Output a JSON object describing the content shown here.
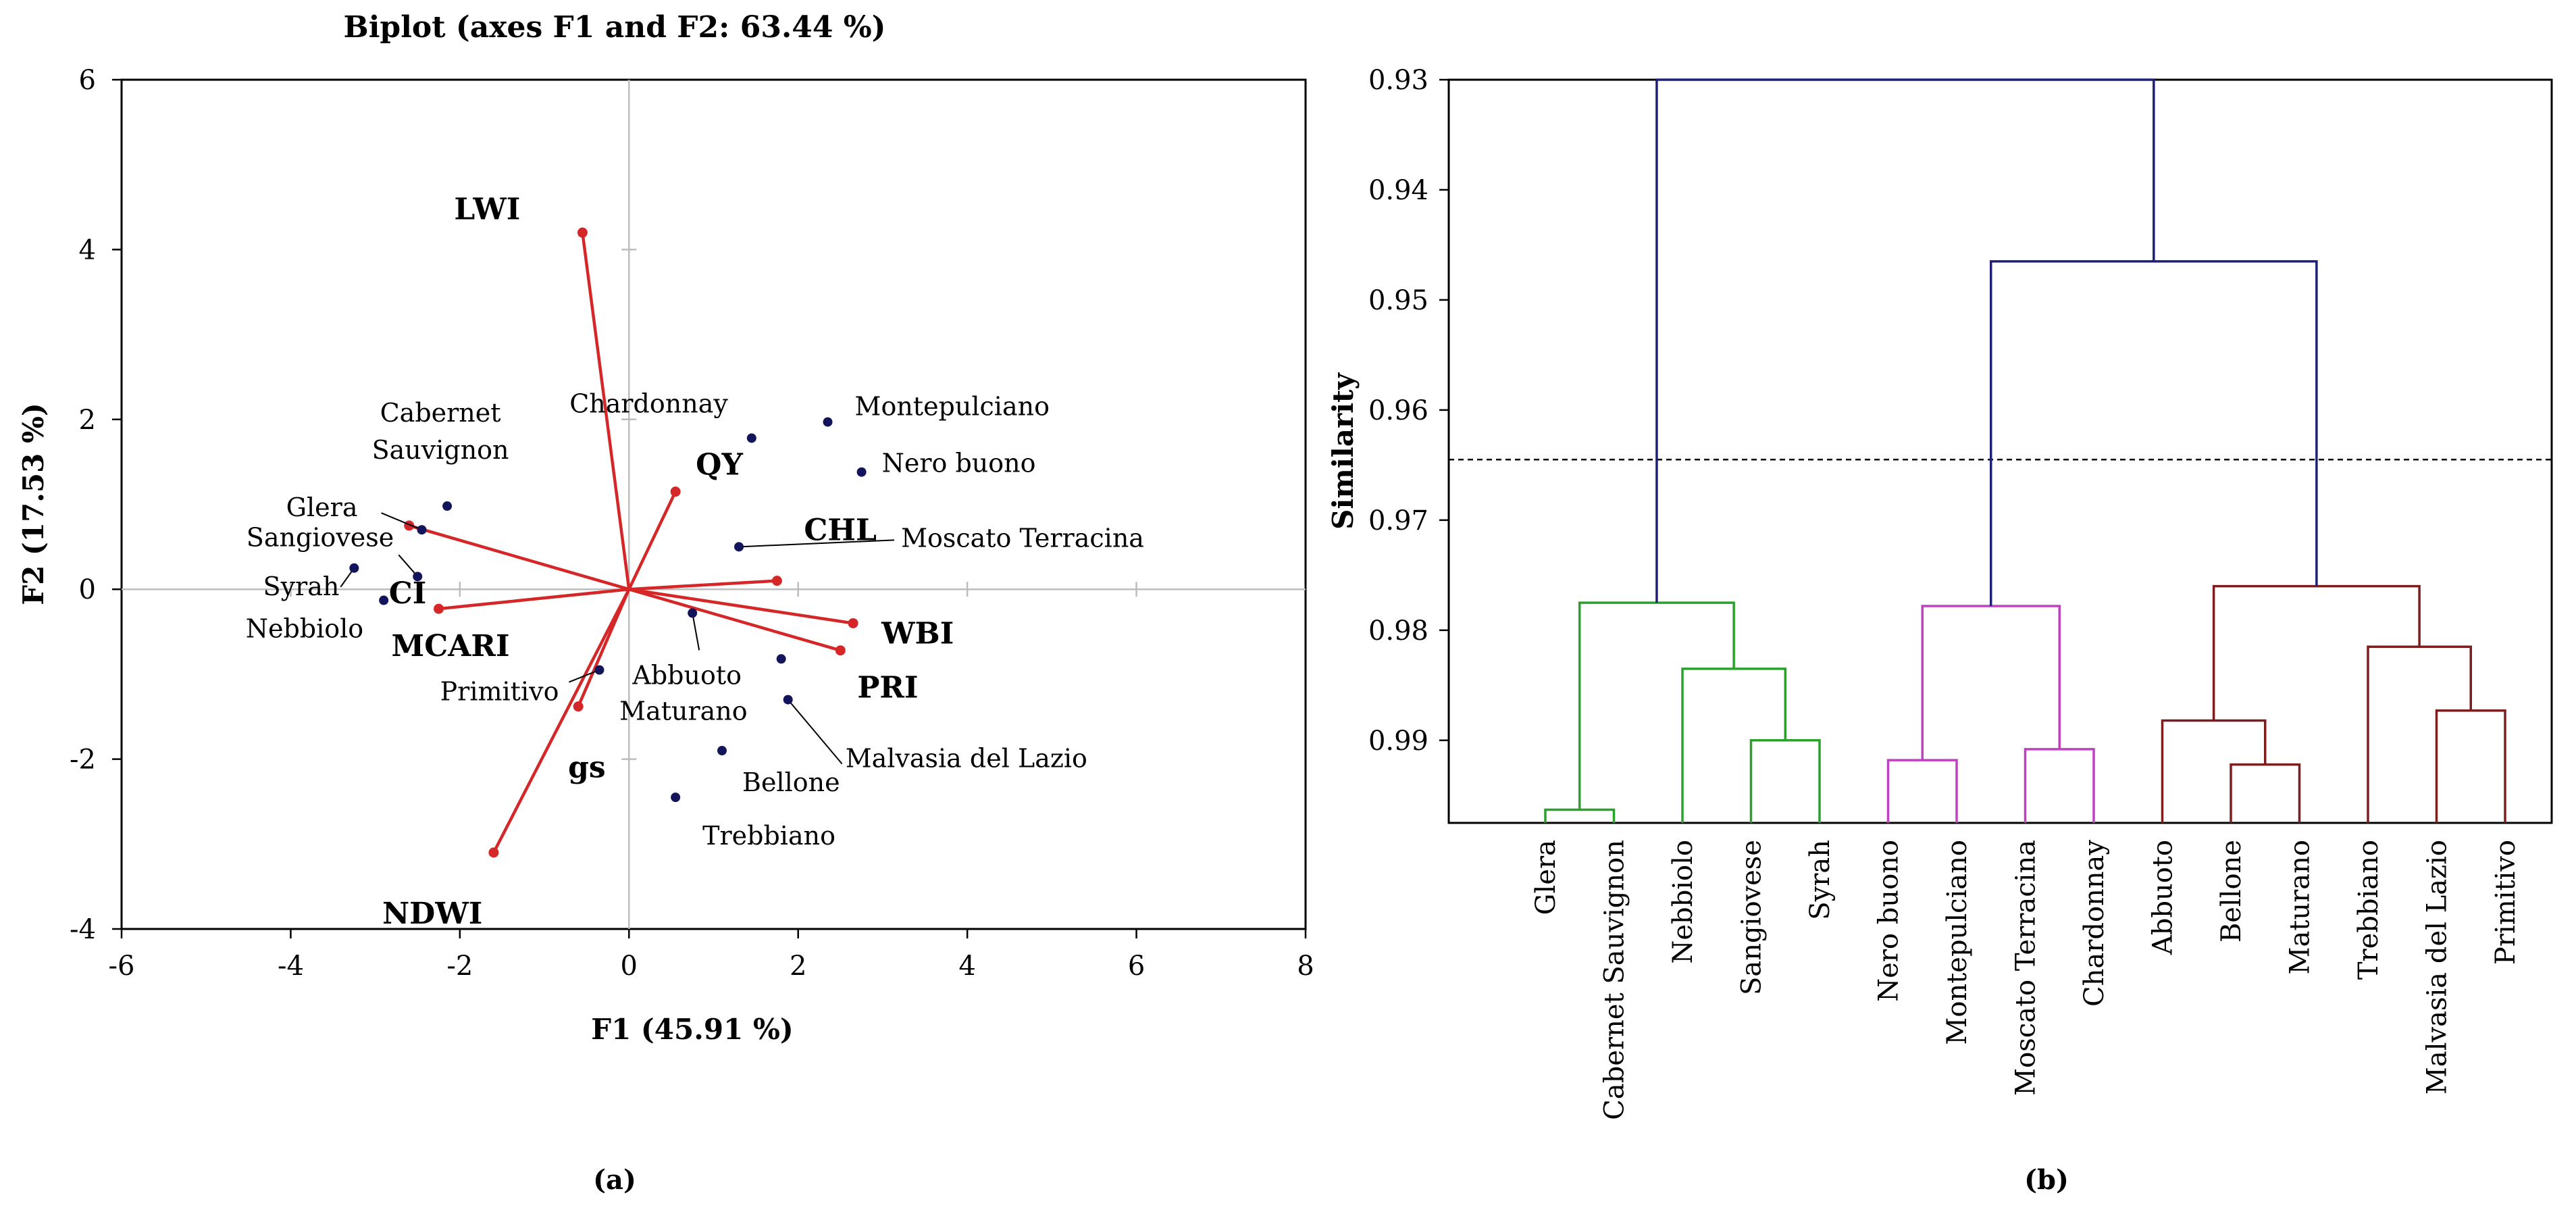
{
  "colors": {
    "vector": "#d62728",
    "observation": "#14145a",
    "axis": "#000000",
    "guide": "#bdbdbd",
    "root": "#1f1f78",
    "cluster_green": "#2ca02c",
    "cluster_magenta": "#c040c0",
    "cluster_maroon": "#7b1e1e",
    "cut_line": "#000000"
  },
  "chart_data": [
    {
      "type": "scatter",
      "subtype": "biplot",
      "panel_label": "(a)",
      "title": "Biplot (axes F1 and F2: 63.44 %)",
      "xlabel": "F1 (45.91 %)",
      "ylabel": "F2 (17.53 %)",
      "xlim": [
        -6,
        8
      ],
      "ylim": [
        -4,
        6
      ],
      "x_ticks": [
        -6,
        -4,
        -2,
        0,
        2,
        4,
        6,
        8
      ],
      "x_tick_labels": [
        "-6",
        "-4",
        "-2",
        "0",
        "2",
        "4",
        "6",
        "8"
      ],
      "y_ticks": [
        -4,
        -2,
        0,
        2,
        4,
        6
      ],
      "y_tick_labels": [
        "-4",
        "-2",
        "0",
        "2",
        "4",
        "6"
      ],
      "variables": [
        {
          "name": "LWI",
          "x": -0.55,
          "y": 4.2
        },
        {
          "name": "QY",
          "x": 0.55,
          "y": 1.15
        },
        {
          "name": "CHL",
          "x": 1.75,
          "y": 0.1
        },
        {
          "name": "WBI",
          "x": 2.65,
          "y": -0.4
        },
        {
          "name": "PRI",
          "x": 2.5,
          "y": -0.72
        },
        {
          "name": "CI",
          "x": -2.6,
          "y": 0.75
        },
        {
          "name": "MCARI",
          "x": -2.25,
          "y": -0.23
        },
        {
          "name": "gs",
          "x": -0.6,
          "y": -1.38
        },
        {
          "name": "NDWI",
          "x": -1.6,
          "y": -3.1
        }
      ],
      "observations": [
        {
          "name": "Chardonnay",
          "x": 1.45,
          "y": 1.78
        },
        {
          "name": "Montepulciano",
          "x": 2.35,
          "y": 1.97
        },
        {
          "name": "Nero buono",
          "x": 2.75,
          "y": 1.38
        },
        {
          "name": "Moscato Terracina",
          "x": 1.3,
          "y": 0.5
        },
        {
          "name": "Abbuoto",
          "x": 0.75,
          "y": -0.28
        },
        {
          "name": "Maturano",
          "x": 1.8,
          "y": -0.82
        },
        {
          "name": "Malvasia del Lazio",
          "x": 1.88,
          "y": -1.3
        },
        {
          "name": "Bellone",
          "x": 1.1,
          "y": -1.9
        },
        {
          "name": "Trebbiano",
          "x": 0.55,
          "y": -2.45
        },
        {
          "name": "Primitivo",
          "x": -0.35,
          "y": -0.95
        },
        {
          "name": "Cabernet Sauvignon",
          "label_lines": [
            "Cabernet",
            "Sauvignon"
          ],
          "x": -2.15,
          "y": 0.98
        },
        {
          "name": "Glera",
          "x": -2.45,
          "y": 0.7
        },
        {
          "name": "Sangiovese",
          "x": -2.5,
          "y": 0.15
        },
        {
          "name": "Syrah",
          "x": -3.25,
          "y": 0.25
        },
        {
          "name": "Nebbiolo",
          "x": -2.9,
          "y": -0.13
        }
      ]
    },
    {
      "type": "dendrogram",
      "panel_label": "(b)",
      "ylabel": "Similarity",
      "ylim": [
        0.93,
        0.9975
      ],
      "y_ticks": [
        0.93,
        0.94,
        0.95,
        0.96,
        0.97,
        0.98,
        0.99
      ],
      "y_tick_labels": [
        "0.93",
        "0.94",
        "0.95",
        "0.96",
        "0.97",
        "0.98",
        "0.99"
      ],
      "cut_similarity": 0.9645,
      "leaves": [
        "Glera",
        "Cabernet Sauvignon",
        "Nebbiolo",
        "Sangiovese",
        "Syrah",
        "Nero buono",
        "Montepulciano",
        "Moscato Terracina",
        "Chardonnay",
        "Abbuoto",
        "Bellone",
        "Maturano",
        "Trebbiano",
        "Malvasia del Lazio",
        "Primitivo"
      ],
      "merges": [
        {
          "id": "m1",
          "left": "Glera",
          "right": "Cabernet Sauvignon",
          "similarity": 0.9963,
          "cluster": "green"
        },
        {
          "id": "m2",
          "left": "Sangiovese",
          "right": "Syrah",
          "similarity": 0.99,
          "cluster": "green"
        },
        {
          "id": "m3",
          "left": "Nebbiolo",
          "right": "m2",
          "similarity": 0.9835,
          "cluster": "green"
        },
        {
          "id": "m4",
          "left": "m1",
          "right": "m3",
          "similarity": 0.9775,
          "cluster": "green"
        },
        {
          "id": "m5",
          "left": "Nero buono",
          "right": "Montepulciano",
          "similarity": 0.9918,
          "cluster": "magenta"
        },
        {
          "id": "m6",
          "left": "Moscato Terracina",
          "right": "Chardonnay",
          "similarity": 0.9908,
          "cluster": "magenta"
        },
        {
          "id": "m7",
          "left": "m5",
          "right": "m6",
          "similarity": 0.9778,
          "cluster": "magenta"
        },
        {
          "id": "m8",
          "left": "Bellone",
          "right": "Maturano",
          "similarity": 0.9922,
          "cluster": "maroon"
        },
        {
          "id": "m9",
          "left": "Abbuoto",
          "right": "m8",
          "similarity": 0.9882,
          "cluster": "maroon"
        },
        {
          "id": "m10",
          "left": "Malvasia del Lazio",
          "right": "Primitivo",
          "similarity": 0.9873,
          "cluster": "maroon"
        },
        {
          "id": "m11",
          "left": "Trebbiano",
          "right": "m10",
          "similarity": 0.9815,
          "cluster": "maroon"
        },
        {
          "id": "m12",
          "left": "m9",
          "right": "m11",
          "similarity": 0.976,
          "cluster": "maroon"
        },
        {
          "id": "m13",
          "left": "m7",
          "right": "m12",
          "similarity": 0.9465,
          "cluster": "root"
        },
        {
          "id": "m14",
          "left": "m4",
          "right": "m13",
          "similarity": 0.93,
          "cluster": "root"
        }
      ]
    }
  ]
}
